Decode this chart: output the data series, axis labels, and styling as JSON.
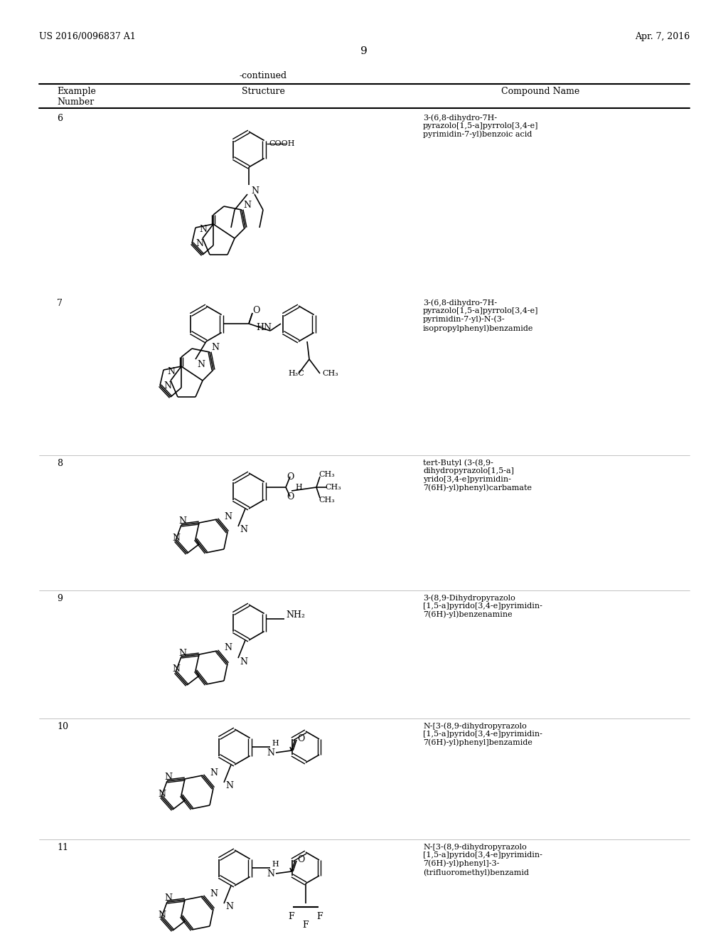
{
  "page_number": "9",
  "patent_number": "US 2016/0096837 A1",
  "patent_date": "Apr. 7, 2016",
  "continued_label": "-continued",
  "col_headers": [
    "Example\nNumber",
    "Structure",
    "Compound Name"
  ],
  "examples": [
    {
      "number": "6",
      "compound_name": "3-(6,8-dihydro-7H-\npyrazolo[1,5-a]pyrrolo[3,4-e]\npyrimidin-7-yl)benzoic acid"
    },
    {
      "number": "7",
      "compound_name": "3-(6,8-dihydro-7H-\npyrazolo[1,5-a]pyrrolo[3,4-e]\npyrimidin-7-yl)-N-(3-\nisopropylphenyl)benzamide"
    },
    {
      "number": "8",
      "compound_name": "tert-Butyl (3-(8,9-\ndihydropyrazolo[1,5-a]\nyrido[3,4-e]pyrimidin-\n7(6H)-yl)phenyl)carbamate"
    },
    {
      "number": "9",
      "compound_name": "3-(8,9-Dihydropyrazolo\n[1,5-a]pyrido[3,4-e]pyrimidin-\n7(6H)-yl)benzenamine"
    },
    {
      "number": "10",
      "compound_name": "N-[3-(8,9-dihydropyrazolo\n[1,5-a]pyrido[3,4-e]pyrimidin-\n7(6H)-yl)phenyl]benzamide"
    },
    {
      "number": "11",
      "compound_name": "N-[3-(8,9-dihydropyrazolo\n[1,5-a]pyrido[3,4-e]pyrimidin-\n7(6H)-yl)phenyl]-3-\n(trifluoromethyl)benzamid"
    }
  ],
  "background_color": "#ffffff",
  "text_color": "#000000",
  "line_color": "#000000",
  "font_size_header": 9,
  "font_size_body": 8,
  "font_size_page": 9
}
